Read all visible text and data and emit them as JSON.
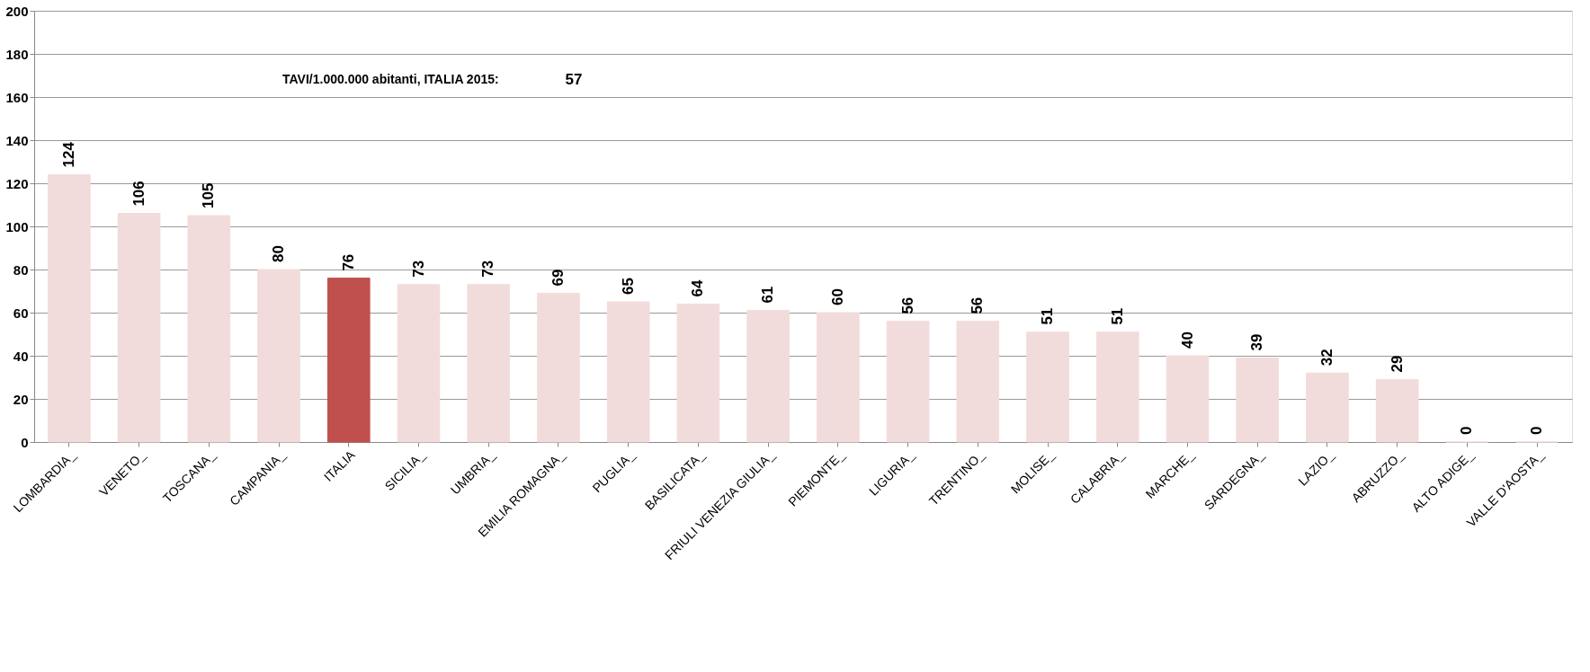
{
  "chart_data": {
    "type": "bar",
    "categories": [
      "LOMBARDIA_",
      "VENETO_",
      "TOSCANA_",
      "CAMPANIA_",
      "ITALIA",
      "SICILIA_",
      "UMBRIA_",
      "EMILIA ROMAGNA_",
      "PUGLIA_",
      "BASILICATA_",
      "FRIULI VENEZIA GIULIA_",
      "PIEMONTE_",
      "LIGURIA_",
      "TRENTINO_",
      "MOLISE_",
      "CALABRIA_",
      "MARCHE_",
      "SARDEGNA_",
      "LAZIO_",
      "ABRUZZO_",
      "ALTO ADIGE_",
      "VALLE D'AOSTA_"
    ],
    "values": [
      124,
      106,
      105,
      80,
      76,
      73,
      73,
      69,
      65,
      64,
      61,
      60,
      56,
      56,
      51,
      51,
      40,
      39,
      32,
      29,
      0,
      0
    ],
    "colors": [
      "#f2dcdb",
      "#f2dcdb",
      "#f2dcdb",
      "#f2dcdb",
      "#c0504d",
      "#f2dcdb",
      "#f2dcdb",
      "#f2dcdb",
      "#f2dcdb",
      "#f2dcdb",
      "#f2dcdb",
      "#f2dcdb",
      "#f2dcdb",
      "#f2dcdb",
      "#f2dcdb",
      "#f2dcdb",
      "#f2dcdb",
      "#f2dcdb",
      "#f2dcdb",
      "#f2dcdb",
      "#f2dcdb",
      "#f2dcdb"
    ],
    "ylim": [
      0,
      200
    ],
    "yticks": [
      0,
      20,
      40,
      60,
      80,
      100,
      120,
      140,
      160,
      180,
      200
    ],
    "grid": "y",
    "data_labels": true,
    "annotations": [
      "TAVI/1.000.000 abitanti, ITALIA 2015:",
      "57"
    ]
  }
}
